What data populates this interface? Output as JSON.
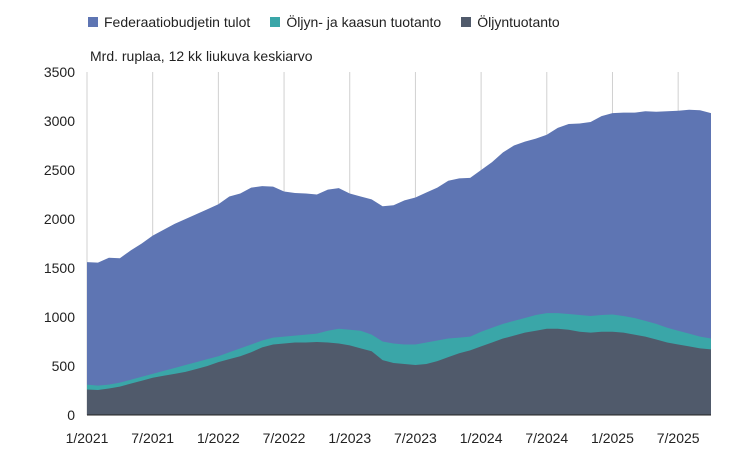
{
  "chart_data": {
    "type": "area",
    "stacked": false,
    "subtitle": "Mrd. ruplaa, 12 kk liukuva keskiarvo",
    "xlabel": "",
    "ylabel": "",
    "ylim": [
      0,
      3500
    ],
    "yticks": [
      "0",
      "500",
      "1000",
      "1500",
      "2000",
      "2500",
      "3000",
      "3500"
    ],
    "xticks": [
      "1/2021",
      "7/2021",
      "1/2022",
      "7/2022",
      "1/2023",
      "7/2023",
      "1/2024",
      "7/2024",
      "1/2025",
      "7/2025"
    ],
    "grid": "vertical",
    "legend_position": "top",
    "x": [
      "1/2021",
      "2/2021",
      "3/2021",
      "4/2021",
      "5/2021",
      "6/2021",
      "7/2021",
      "8/2021",
      "9/2021",
      "10/2021",
      "11/2021",
      "12/2021",
      "1/2022",
      "2/2022",
      "3/2022",
      "4/2022",
      "5/2022",
      "6/2022",
      "7/2022",
      "8/2022",
      "9/2022",
      "10/2022",
      "11/2022",
      "12/2022",
      "1/2023",
      "2/2023",
      "3/2023",
      "4/2023",
      "5/2023",
      "6/2023",
      "7/2023",
      "8/2023",
      "9/2023",
      "10/2023",
      "11/2023",
      "12/2023",
      "1/2024",
      "2/2024",
      "3/2024",
      "4/2024",
      "5/2024",
      "6/2024",
      "7/2024",
      "8/2024",
      "9/2024",
      "10/2024",
      "11/2024",
      "12/2024",
      "1/2025",
      "2/2025",
      "3/2025",
      "4/2025",
      "5/2025",
      "6/2025",
      "7/2025",
      "8/2025",
      "9/2025",
      "10/2025"
    ],
    "series": [
      {
        "name": "Federaatiobudjetin tulot",
        "color": "#5e75b3",
        "values": [
          1560,
          1555,
          1605,
          1600,
          1680,
          1750,
          1830,
          1890,
          1950,
          2000,
          2050,
          2100,
          2150,
          2230,
          2260,
          2320,
          2335,
          2330,
          2280,
          2265,
          2260,
          2250,
          2300,
          2315,
          2260,
          2230,
          2200,
          2130,
          2140,
          2190,
          2220,
          2270,
          2320,
          2390,
          2415,
          2420,
          2500,
          2580,
          2680,
          2750,
          2790,
          2820,
          2860,
          2930,
          2970,
          2975,
          2990,
          3050,
          3080,
          3085,
          3085,
          3100,
          3095,
          3100,
          3105,
          3115,
          3110,
          3080
        ]
      },
      {
        "name": "Öljyn- ja kaasun tuotanto",
        "color": "#3aa6a8",
        "values": [
          310,
          300,
          310,
          330,
          360,
          390,
          420,
          450,
          480,
          510,
          540,
          570,
          600,
          640,
          680,
          720,
          760,
          790,
          800,
          810,
          820,
          830,
          860,
          880,
          870,
          860,
          820,
          750,
          730,
          720,
          720,
          740,
          760,
          780,
          790,
          800,
          850,
          890,
          930,
          960,
          990,
          1020,
          1040,
          1040,
          1030,
          1020,
          1010,
          1020,
          1025,
          1010,
          990,
          960,
          930,
          890,
          860,
          830,
          800,
          780
        ]
      },
      {
        "name": "Öljyntuotanto",
        "color": "#505a6b",
        "values": [
          260,
          255,
          270,
          290,
          320,
          350,
          380,
          400,
          420,
          440,
          470,
          500,
          540,
          570,
          600,
          640,
          690,
          720,
          730,
          740,
          740,
          745,
          740,
          730,
          710,
          680,
          650,
          560,
          530,
          520,
          510,
          520,
          550,
          590,
          630,
          660,
          700,
          740,
          780,
          810,
          840,
          860,
          880,
          880,
          870,
          850,
          840,
          850,
          850,
          840,
          820,
          800,
          770,
          740,
          720,
          700,
          680,
          670
        ]
      }
    ]
  }
}
